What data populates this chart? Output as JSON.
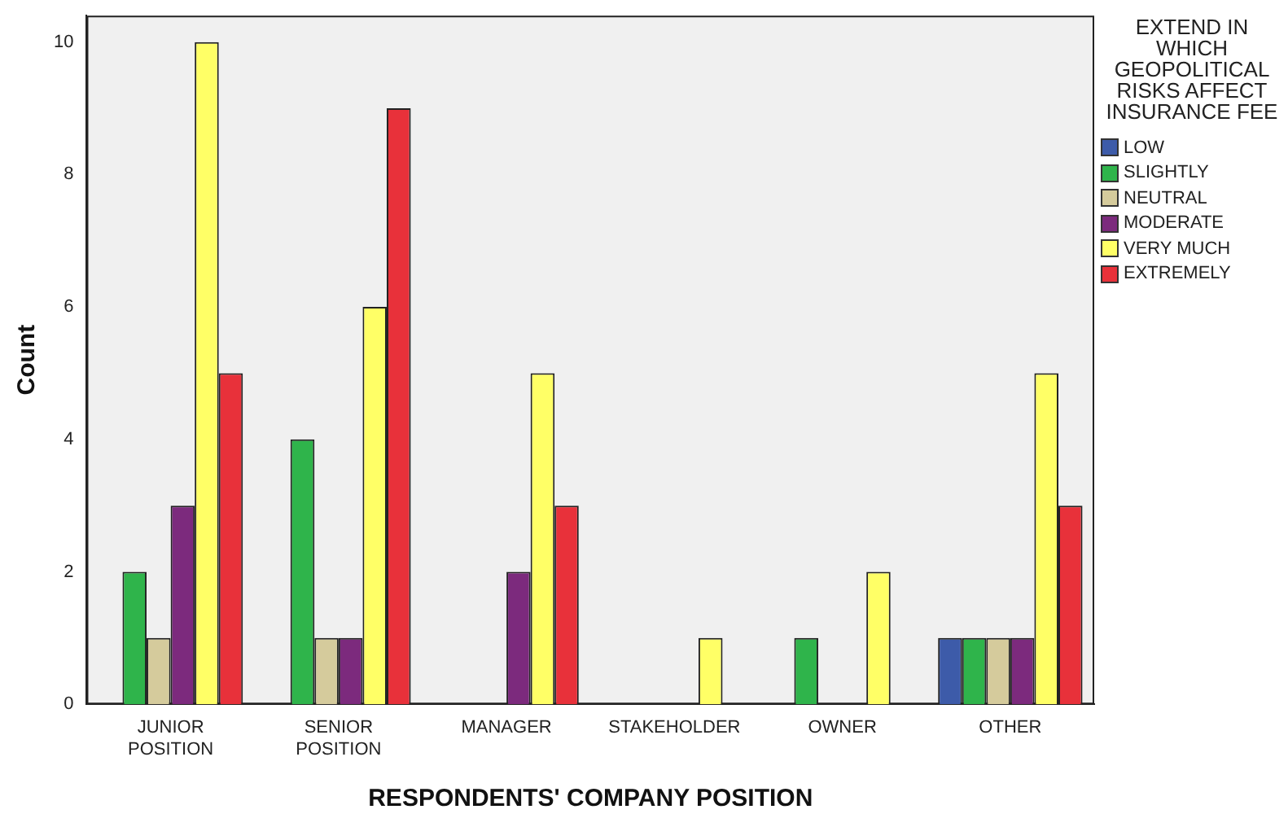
{
  "chart_data": {
    "type": "bar",
    "xlabel": "RESPONDENTS' COMPANY POSITION",
    "ylabel": "Count",
    "legend_title": "EXTEND IN WHICH GEOPOLITICAL RISKS AFFECT INSURANCE FEE",
    "legend": "right",
    "grid": false,
    "categories": [
      "JUNIOR POSITION",
      "SENIOR POSITION",
      "MANAGER",
      "STAKEHOLDER",
      "OWNER",
      "OTHER"
    ],
    "ylim": [
      0,
      10.4
    ],
    "yticks": [
      0,
      2,
      4,
      6,
      8,
      10
    ],
    "series": [
      {
        "name": "LOW",
        "color": "#3d5ba9",
        "values": [
          0,
          0,
          0,
          0,
          0,
          1
        ]
      },
      {
        "name": "SLIGHTLY",
        "color": "#2fb44b",
        "values": [
          2,
          4,
          0,
          0,
          1,
          1
        ]
      },
      {
        "name": "NEUTRAL",
        "color": "#d5cb9c",
        "values": [
          1,
          1,
          0,
          0,
          0,
          1
        ]
      },
      {
        "name": "MODERATE",
        "color": "#7c2a7d",
        "values": [
          3,
          1,
          2,
          0,
          0,
          1
        ]
      },
      {
        "name": "VERY MUCH",
        "color": "#ffff66",
        "values": [
          10,
          6,
          5,
          1,
          2,
          5
        ]
      },
      {
        "name": "EXTREMELY",
        "color": "#e8313a",
        "values": [
          5,
          9,
          3,
          0,
          0,
          3
        ]
      }
    ]
  }
}
